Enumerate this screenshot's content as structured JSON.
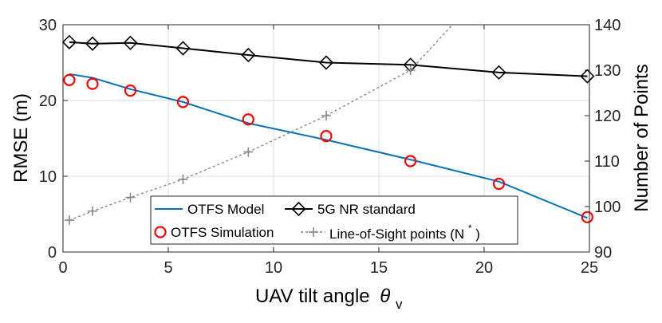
{
  "chart_data": {
    "type": "line",
    "xlabel": "UAV tilt angle",
    "xlabel_symbol": "θ",
    "xlabel_subscript": "v",
    "ylabel_left": "RMSE (m)",
    "ylabel_right": "Number of Points",
    "xlim": [
      0,
      25
    ],
    "ylim_left": [
      0,
      30
    ],
    "ylim_right": [
      90,
      140
    ],
    "xticks": [
      0,
      5,
      10,
      15,
      20,
      25
    ],
    "yticks_left": [
      0,
      10,
      20,
      30
    ],
    "yticks_right": [
      90,
      100,
      110,
      120,
      130,
      140
    ],
    "grid": true,
    "legend_position": "lower-center",
    "series": [
      {
        "name": "OTFS Model",
        "axis": "left",
        "style": "solid-line",
        "color": "#0072BD",
        "x": [
          0.3,
          1.4,
          3.2,
          5.7,
          8.8,
          12.5,
          16.5,
          20.7,
          24.9
        ],
        "values": [
          23.5,
          23.0,
          21.5,
          19.8,
          17.0,
          14.8,
          12.2,
          9.3,
          4.5
        ]
      },
      {
        "name": "5G NR standard",
        "axis": "left",
        "style": "line-diamond",
        "color": "#000000",
        "x": [
          0.3,
          1.4,
          3.2,
          5.7,
          8.8,
          12.5,
          16.5,
          20.7,
          24.9
        ],
        "values": [
          27.7,
          27.5,
          27.6,
          26.9,
          26.0,
          25.0,
          24.7,
          23.7,
          23.2
        ]
      },
      {
        "name": "OTFS Simulation",
        "axis": "left",
        "style": "circle-markers",
        "color": "#FF0000",
        "x": [
          0.3,
          1.4,
          3.2,
          5.7,
          8.8,
          12.5,
          16.5,
          20.7,
          24.9
        ],
        "values": [
          22.7,
          22.2,
          21.3,
          19.8,
          17.5,
          15.3,
          12.0,
          9.0,
          4.6
        ]
      },
      {
        "name": "Line-of-Sight points (N",
        "name_sup": "*",
        "name_suffix": ")",
        "axis": "right",
        "style": "dashed-plus",
        "color": "#888888",
        "x": [
          0.3,
          1.4,
          3.2,
          5.7,
          8.8,
          12.5,
          16.5,
          18.5
        ],
        "values": [
          97,
          99,
          102,
          106,
          112,
          120,
          130,
          140
        ]
      }
    ]
  }
}
